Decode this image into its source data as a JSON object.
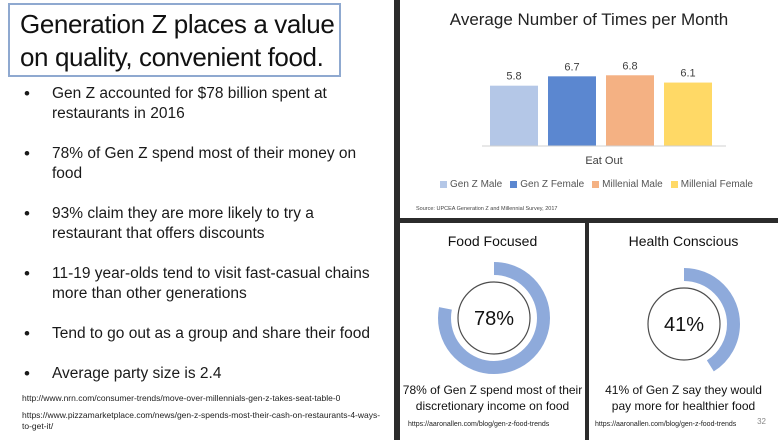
{
  "slide": {
    "title": "Generation Z places a value on quality, convenient food.",
    "bullets": [
      "Gen Z accounted for $78 billion spent at restaurants in 2016",
      "78% of Gen Z spend most of their money on food",
      "93% claim they are more likely to try a restaurant that offers discounts",
      "11-19 year-olds tend to visit fast-casual chains more than other generations",
      "Tend to go out as a group and share their food",
      "Average party size is 2.4"
    ],
    "sources": [
      "http://www.nrn.com/consumer-trends/move-over-millennials-gen-z-takes-seat-table-0",
      "https://www.pizzamarketplace.com/news/gen-z-spends-most-their-cash-on-restaurants-4-ways-to-get-it/"
    ],
    "page_number": "32"
  },
  "chart_data": [
    {
      "type": "bar",
      "title": "Average Number of Times per Month",
      "categories": [
        "Eat Out"
      ],
      "series": [
        {
          "name": "Gen Z Male",
          "values": [
            5.8
          ],
          "color": "#b4c7e7"
        },
        {
          "name": "Gen Z Female",
          "values": [
            6.7
          ],
          "color": "#5b87d0"
        },
        {
          "name": "Millenial Male",
          "values": [
            6.8
          ],
          "color": "#f4b183"
        },
        {
          "name": "Millenial Female",
          "values": [
            6.1
          ],
          "color": "#ffd966"
        }
      ],
      "xlabel": "Eat Out",
      "ylabel": "",
      "ylim": [
        0,
        7.5
      ],
      "grid": false,
      "legend": "bottom",
      "source": "Source: UPCEA Generation Z and Millennial Survey, 2017"
    },
    {
      "type": "pie",
      "title": "Food Focused",
      "value": 78,
      "label": "78%",
      "caption": "78% of Gen Z spend most of their discretionary income on food",
      "source": "https://aaronallen.com/blog/gen-z-food-trends",
      "color": "#8eaadb"
    },
    {
      "type": "pie",
      "title": "Health Conscious",
      "value": 41,
      "label": "41%",
      "caption": "41% of Gen Z say they would pay more for healthier food",
      "source": "https://aaronallen.com/blog/gen-z-food-trends",
      "color": "#8eaadb"
    }
  ]
}
